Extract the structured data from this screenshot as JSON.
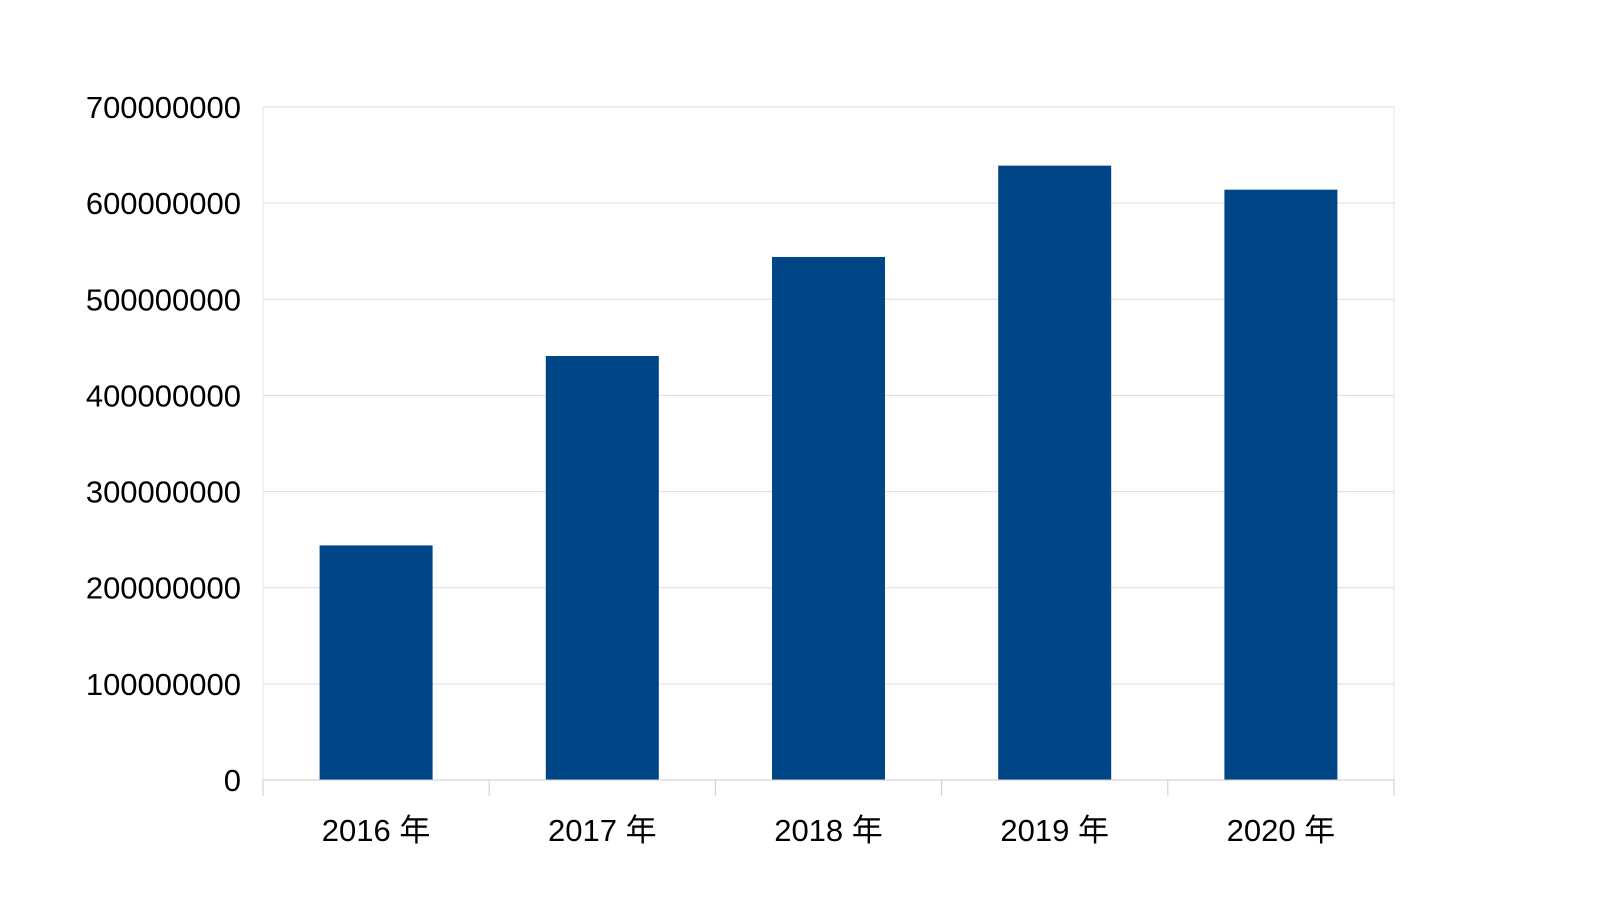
{
  "colors": {
    "bar": "#004586",
    "grid": "#dddddd",
    "axis": "#cccccc",
    "text": "#000000",
    "background": "#ffffff"
  },
  "chart_data": {
    "type": "bar",
    "title": "",
    "xlabel": "",
    "ylabel": "",
    "categories": [
      "2016 年",
      "2017 年",
      "2018 年",
      "2019 年",
      "2020 年"
    ],
    "values": [
      244000000,
      441000000,
      544000000,
      639000000,
      614000000
    ],
    "ylim": [
      0,
      700000000
    ],
    "y_ticks": [
      0,
      100000000,
      200000000,
      300000000,
      400000000,
      500000000,
      600000000,
      700000000
    ],
    "y_tick_labels": [
      "0",
      "100000000",
      "200000000",
      "300000000",
      "400000000",
      "500000000",
      "600000000",
      "700000000"
    ],
    "grid": true,
    "legend": "none"
  }
}
